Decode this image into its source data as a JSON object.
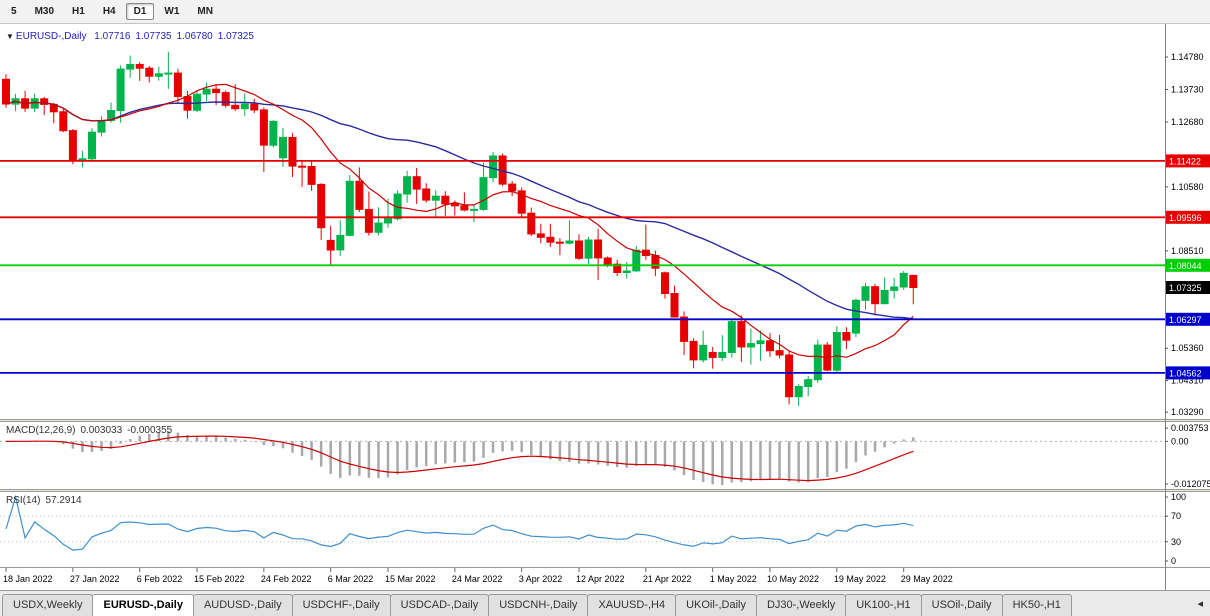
{
  "toolbar": {
    "timeframes": [
      "5",
      "M30",
      "H1",
      "H4",
      "D1",
      "W1",
      "MN"
    ],
    "active": "D1"
  },
  "main_chart": {
    "collapse_icon": "▼",
    "symbol": "EURUSD-,Daily",
    "open": "1.07716",
    "high": "1.07735",
    "low": "1.06780",
    "close": "1.07325",
    "price_axis_labels": [
      {
        "text": "1.14780",
        "value": 1.1478
      },
      {
        "text": "1.13730",
        "value": 1.1373
      },
      {
        "text": "1.12680",
        "value": 1.1268
      },
      {
        "text": "1.10580",
        "value": 1.1058
      },
      {
        "text": "1.08510",
        "value": 1.0851
      },
      {
        "text": "1.05360",
        "value": 1.0536
      },
      {
        "text": "1.04310",
        "value": 1.0431
      },
      {
        "text": "1.03290",
        "value": 1.0329
      }
    ],
    "hlines": [
      {
        "value": 1.11422,
        "label": "1.11422",
        "color": "#e60000"
      },
      {
        "value": 1.09596,
        "label": "1.09596",
        "color": "#e60000"
      },
      {
        "value": 1.08044,
        "label": "1.08044",
        "color": "#00ce00"
      },
      {
        "value": 1.06297,
        "label": "1.06297",
        "color": "#0000cc"
      },
      {
        "value": 1.04562,
        "label": "1.04562",
        "color": "#0000cc"
      }
    ],
    "current_price": {
      "text": "1.07325",
      "value": 1.07325
    }
  },
  "chart_data": {
    "type": "candlestick",
    "symbol": "EURUSD",
    "timeframe": "Daily",
    "y_range": {
      "top": 1.1585,
      "bottom": 1.0307
    },
    "x_labels": [
      {
        "text": "18 Jan 2022",
        "index": 0
      },
      {
        "text": "27 Jan 2022",
        "index": 7
      },
      {
        "text": "6 Feb 2022",
        "index": 14
      },
      {
        "text": "15 Feb 2022",
        "index": 20
      },
      {
        "text": "24 Feb 2022",
        "index": 27
      },
      {
        "text": "6 Mar 2022",
        "index": 34
      },
      {
        "text": "15 Mar 2022",
        "index": 40
      },
      {
        "text": "24 Mar 2022",
        "index": 47
      },
      {
        "text": "3 Apr 2022",
        "index": 54
      },
      {
        "text": "12 Apr 2022",
        "index": 60
      },
      {
        "text": "21 Apr 2022",
        "index": 67
      },
      {
        "text": "1 May 2022",
        "index": 74
      },
      {
        "text": "10 May 2022",
        "index": 80
      },
      {
        "text": "19 May 2022",
        "index": 87
      },
      {
        "text": "29 May 2022",
        "index": 94
      }
    ],
    "overlays": [
      {
        "name": "ma-fast",
        "period": 12,
        "color": "#cc0000"
      },
      {
        "name": "ma-slow",
        "period": 34,
        "color": "#2b2b9e"
      }
    ],
    "ohlc": [
      [
        1.1406,
        1.1422,
        1.1314,
        1.1326
      ],
      [
        1.1326,
        1.1359,
        1.1303,
        1.1343
      ],
      [
        1.1343,
        1.1369,
        1.1301,
        1.1313
      ],
      [
        1.1313,
        1.136,
        1.13,
        1.1343
      ],
      [
        1.1343,
        1.1349,
        1.1291,
        1.1325
      ],
      [
        1.1325,
        1.133,
        1.1264,
        1.1301
      ],
      [
        1.1301,
        1.131,
        1.1235,
        1.124
      ],
      [
        1.124,
        1.1245,
        1.1131,
        1.1144
      ],
      [
        1.1144,
        1.1175,
        1.1121,
        1.1149
      ],
      [
        1.1149,
        1.1248,
        1.1141,
        1.1235
      ],
      [
        1.1235,
        1.1286,
        1.1221,
        1.1273
      ],
      [
        1.1273,
        1.1331,
        1.1266,
        1.1305
      ],
      [
        1.1305,
        1.1451,
        1.1266,
        1.1439
      ],
      [
        1.1439,
        1.1483,
        1.1411,
        1.1454
      ],
      [
        1.1454,
        1.1461,
        1.1401,
        1.1442
      ],
      [
        1.1442,
        1.1449,
        1.1396,
        1.1416
      ],
      [
        1.1416,
        1.1447,
        1.1402,
        1.1424
      ],
      [
        1.1424,
        1.1495,
        1.1375,
        1.1426
      ],
      [
        1.1426,
        1.144,
        1.1329,
        1.135
      ],
      [
        1.135,
        1.1369,
        1.1279,
        1.1306
      ],
      [
        1.1306,
        1.1368,
        1.13,
        1.1358
      ],
      [
        1.1358,
        1.1395,
        1.1336,
        1.1374
      ],
      [
        1.1374,
        1.1388,
        1.1323,
        1.1363
      ],
      [
        1.1363,
        1.137,
        1.1315,
        1.1322
      ],
      [
        1.1322,
        1.139,
        1.1304,
        1.1311
      ],
      [
        1.1311,
        1.136,
        1.1287,
        1.1326
      ],
      [
        1.1326,
        1.1343,
        1.1297,
        1.1307
      ],
      [
        1.1307,
        1.1315,
        1.1106,
        1.1193
      ],
      [
        1.1193,
        1.1274,
        1.1185,
        1.127
      ],
      [
        1.1152,
        1.1249,
        1.1122,
        1.1218
      ],
      [
        1.1218,
        1.1232,
        1.109,
        1.1125
      ],
      [
        1.1125,
        1.114,
        1.1058,
        1.1124
      ],
      [
        1.1124,
        1.1145,
        1.1045,
        1.1066
      ],
      [
        1.1066,
        1.107,
        1.0886,
        1.0926
      ],
      [
        1.0885,
        1.0932,
        1.0806,
        1.0854
      ],
      [
        1.0854,
        1.095,
        1.0834,
        1.0901
      ],
      [
        1.0901,
        1.1096,
        1.0898,
        1.1076
      ],
      [
        1.1076,
        1.1121,
        1.0977,
        1.0985
      ],
      [
        1.0985,
        1.1043,
        1.09,
        1.0911
      ],
      [
        1.0911,
        1.0992,
        1.0901,
        1.0941
      ],
      [
        1.0941,
        1.102,
        1.0926,
        1.0955
      ],
      [
        1.0955,
        1.1046,
        1.095,
        1.1035
      ],
      [
        1.1035,
        1.111,
        1.1007,
        1.1091
      ],
      [
        1.1091,
        1.1119,
        1.1003,
        1.1051
      ],
      [
        1.1051,
        1.107,
        1.1007,
        1.1015
      ],
      [
        1.1015,
        1.1047,
        1.0962,
        1.1028
      ],
      [
        1.1028,
        1.1044,
        1.0963,
        1.1003
      ],
      [
        1.1003,
        1.1014,
        1.0965,
        1.0997
      ],
      [
        1.0997,
        1.104,
        1.0979,
        1.0983
      ],
      [
        1.0983,
        1.1,
        1.0944,
        1.0985
      ],
      [
        1.0985,
        1.1137,
        1.098,
        1.1088
      ],
      [
        1.1088,
        1.1171,
        1.1073,
        1.1158
      ],
      [
        1.1158,
        1.1166,
        1.106,
        1.1067
      ],
      [
        1.1067,
        1.1077,
        1.1028,
        1.1045
      ],
      [
        1.1045,
        1.1056,
        1.0961,
        1.0973
      ],
      [
        1.0973,
        1.0991,
        1.0899,
        1.0906
      ],
      [
        1.0906,
        1.0939,
        1.0875,
        1.0895
      ],
      [
        1.0895,
        1.0939,
        1.0864,
        1.0879
      ],
      [
        1.0879,
        1.0892,
        1.0837,
        1.0876
      ],
      [
        1.0876,
        1.095,
        1.0872,
        1.0883
      ],
      [
        1.0883,
        1.0905,
        1.0821,
        1.0827
      ],
      [
        1.0827,
        1.0896,
        1.0809,
        1.0886
      ],
      [
        1.0886,
        1.0923,
        1.0757,
        1.0828
      ],
      [
        1.0828,
        1.0833,
        1.0798,
        1.0808
      ],
      [
        1.0808,
        1.0822,
        1.0769,
        1.0781
      ],
      [
        1.0781,
        1.0815,
        1.0761,
        1.0786
      ],
      [
        1.0786,
        1.0867,
        1.0783,
        1.0853
      ],
      [
        1.0853,
        1.0936,
        1.0822,
        1.0836
      ],
      [
        1.0836,
        1.0852,
        1.077,
        1.0795
      ],
      [
        1.078,
        1.0784,
        1.0697,
        1.0713
      ],
      [
        1.0713,
        1.0738,
        1.0635,
        1.0637
      ],
      [
        1.0637,
        1.0655,
        1.0514,
        1.0558
      ],
      [
        1.0558,
        1.0568,
        1.0471,
        1.0498
      ],
      [
        1.0498,
        1.0593,
        1.049,
        1.0545
      ],
      [
        1.0522,
        1.054,
        1.047,
        1.0506
      ],
      [
        1.0506,
        1.0578,
        1.0495,
        1.0522
      ],
      [
        1.0522,
        1.0632,
        1.0506,
        1.0622
      ],
      [
        1.0622,
        1.0642,
        1.0492,
        1.054
      ],
      [
        1.054,
        1.0599,
        1.0483,
        1.0551
      ],
      [
        1.0551,
        1.0594,
        1.0495,
        1.056
      ],
      [
        1.056,
        1.0585,
        1.0508,
        1.0528
      ],
      [
        1.0528,
        1.0579,
        1.0503,
        1.0514
      ],
      [
        1.0514,
        1.0526,
        1.0354,
        1.0379
      ],
      [
        1.0379,
        1.042,
        1.0349,
        1.0412
      ],
      [
        1.0412,
        1.0446,
        1.038,
        1.0434
      ],
      [
        1.0434,
        1.0564,
        1.0424,
        1.0546
      ],
      [
        1.0546,
        1.0556,
        1.0461,
        1.0465
      ],
      [
        1.0465,
        1.0607,
        1.0459,
        1.0587
      ],
      [
        1.0587,
        1.0604,
        1.0533,
        1.0562
      ],
      [
        1.0585,
        1.0697,
        1.0572,
        1.0691
      ],
      [
        1.0691,
        1.0748,
        1.066,
        1.0735
      ],
      [
        1.0735,
        1.0744,
        1.0642,
        1.068
      ],
      [
        1.068,
        1.0765,
        1.0678,
        1.0723
      ],
      [
        1.0723,
        1.0764,
        1.0697,
        1.0734
      ],
      [
        1.0734,
        1.0786,
        1.0725,
        1.0778
      ],
      [
        1.07716,
        1.07735,
        1.0678,
        1.07325
      ]
    ]
  },
  "macd": {
    "label": "MACD(12,26,9)",
    "fast": 12,
    "slow": 26,
    "signal": 9,
    "value_main": "0.003033",
    "value_signal": "-0.000355",
    "axis_labels": [
      {
        "text": "0.003753",
        "value": 0.003753
      },
      {
        "text": "0.00",
        "value": 0
      },
      {
        "text": "-0.012075",
        "value": -0.012075
      }
    ],
    "range": {
      "top": 0.0055,
      "bottom": -0.0135
    }
  },
  "rsi": {
    "label": "RSI(14)",
    "period": 14,
    "value": "57.2914",
    "levels": [
      70,
      30
    ],
    "axis_labels": [
      {
        "text": "100",
        "value": 100
      },
      {
        "text": "70",
        "value": 70
      },
      {
        "text": "30",
        "value": 30
      },
      {
        "text": "0",
        "value": 0
      }
    ]
  },
  "tabs": {
    "items": [
      "USDX,Weekly",
      "EURUSD-,Daily",
      "AUDUSD-,Daily",
      "USDCHF-,Daily",
      "USDCAD-,Daily",
      "USDCNH-,Daily",
      "XAUUSD-,H4",
      "UKOil-,Daily",
      "DJ30-,Weekly",
      "UK100-,H1",
      "USOil-,Daily",
      "HK50-,H1"
    ],
    "active": "EURUSD-,Daily",
    "scroll_icon": "◂"
  },
  "colors": {
    "bull": "#00b44c",
    "bear": "#e60000",
    "ma_fast": "#cc0000",
    "ma_slow": "#2b2b9e",
    "macd_hist": "#a8a8a8",
    "macd_signal": "#cc0000",
    "rsi_line": "#3e8ed0",
    "price_badge_bg": "#000000",
    "axis_text": "#000000"
  }
}
